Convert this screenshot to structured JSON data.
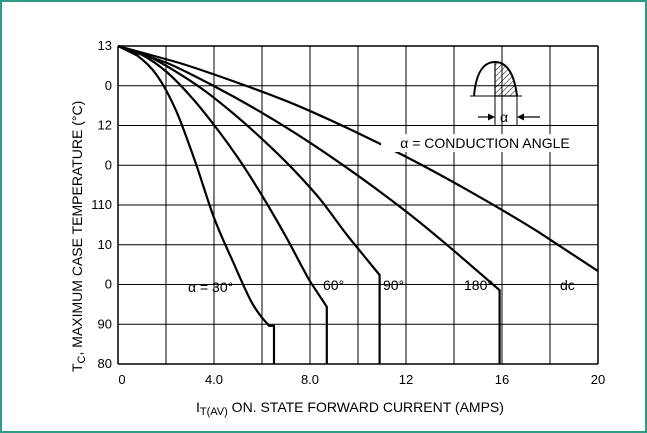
{
  "chart_data": {
    "type": "line",
    "xlabel_main": "I",
    "xlabel_sub": "T(AV)",
    "xlabel_rest": " ON. STATE FORWARD CURRENT (AMPS)",
    "ylabel_main": "T",
    "ylabel_sub": "C",
    "ylabel_rest": ", MAXIMUM CASE TEMPERATURE (°C)",
    "xlim": [
      0,
      20
    ],
    "x_ticks": [
      {
        "value": 0,
        "label": "0"
      },
      {
        "value": 4,
        "label": "4.0"
      },
      {
        "value": 8,
        "label": "8.0"
      },
      {
        "value": 12,
        "label": "12"
      },
      {
        "value": 16,
        "label": "16"
      },
      {
        "value": 20,
        "label": "20"
      }
    ],
    "y_tick_labels": [
      {
        "label": "13",
        "row": 0
      },
      {
        "label": "0",
        "row": 1
      },
      {
        "label": "12",
        "row": 2
      },
      {
        "label": "0",
        "row": 3
      },
      {
        "label": "110",
        "row": 4
      },
      {
        "label": "10",
        "row": 5
      },
      {
        "label": "0",
        "row": 6
      },
      {
        "label": "90",
        "row": 7
      },
      {
        "label": "80",
        "row": 8
      }
    ],
    "grid": true,
    "series": [
      {
        "name": "α = 30°",
        "x": [
          0,
          0.8,
          1.6,
          2.4,
          3.2,
          4.0,
          4.8,
          5.6,
          6.3,
          6.5,
          6.5
        ],
        "y": [
          130,
          128.5,
          125.5,
          120,
          112,
          103,
          96,
          89.5,
          86,
          86,
          80
        ]
      },
      {
        "name": "60°",
        "x": [
          0,
          1,
          2,
          3,
          4,
          5,
          6,
          7,
          8,
          8.7,
          8.7
        ],
        "y": [
          130,
          128.6,
          126,
          122.2,
          117.6,
          112.4,
          106.5,
          100,
          93,
          89,
          80
        ]
      },
      {
        "name": "90°",
        "x": [
          0,
          1.2,
          2.4,
          3.6,
          4.8,
          6,
          7.2,
          8.4,
          9.6,
          10.9,
          10.9
        ],
        "y": [
          130,
          128.5,
          126,
          123,
          119.4,
          115.4,
          111,
          106,
          100,
          94,
          80
        ]
      },
      {
        "name": "180°",
        "x": [
          0,
          2,
          4,
          6,
          8,
          10,
          12,
          14,
          15.9,
          15.9
        ],
        "y": [
          130,
          127.4,
          123.7,
          119.5,
          114.8,
          109.6,
          104,
          97.8,
          91.6,
          80
        ]
      },
      {
        "name": "dc",
        "x": [
          0,
          2.5,
          5,
          7.5,
          10,
          12.5,
          15,
          17.5,
          20
        ],
        "y": [
          130,
          127.4,
          124.2,
          120.6,
          116.3,
          111.6,
          106.4,
          100.8,
          94.6
        ]
      }
    ],
    "annotations": {
      "alpha_30": "α = 30°",
      "alpha_60": "60°",
      "alpha_90": "90°",
      "alpha_180": "180°",
      "dc": "dc",
      "conduction_angle": "α = CONDUCTION ANGLE",
      "inset_alpha": "α"
    }
  }
}
